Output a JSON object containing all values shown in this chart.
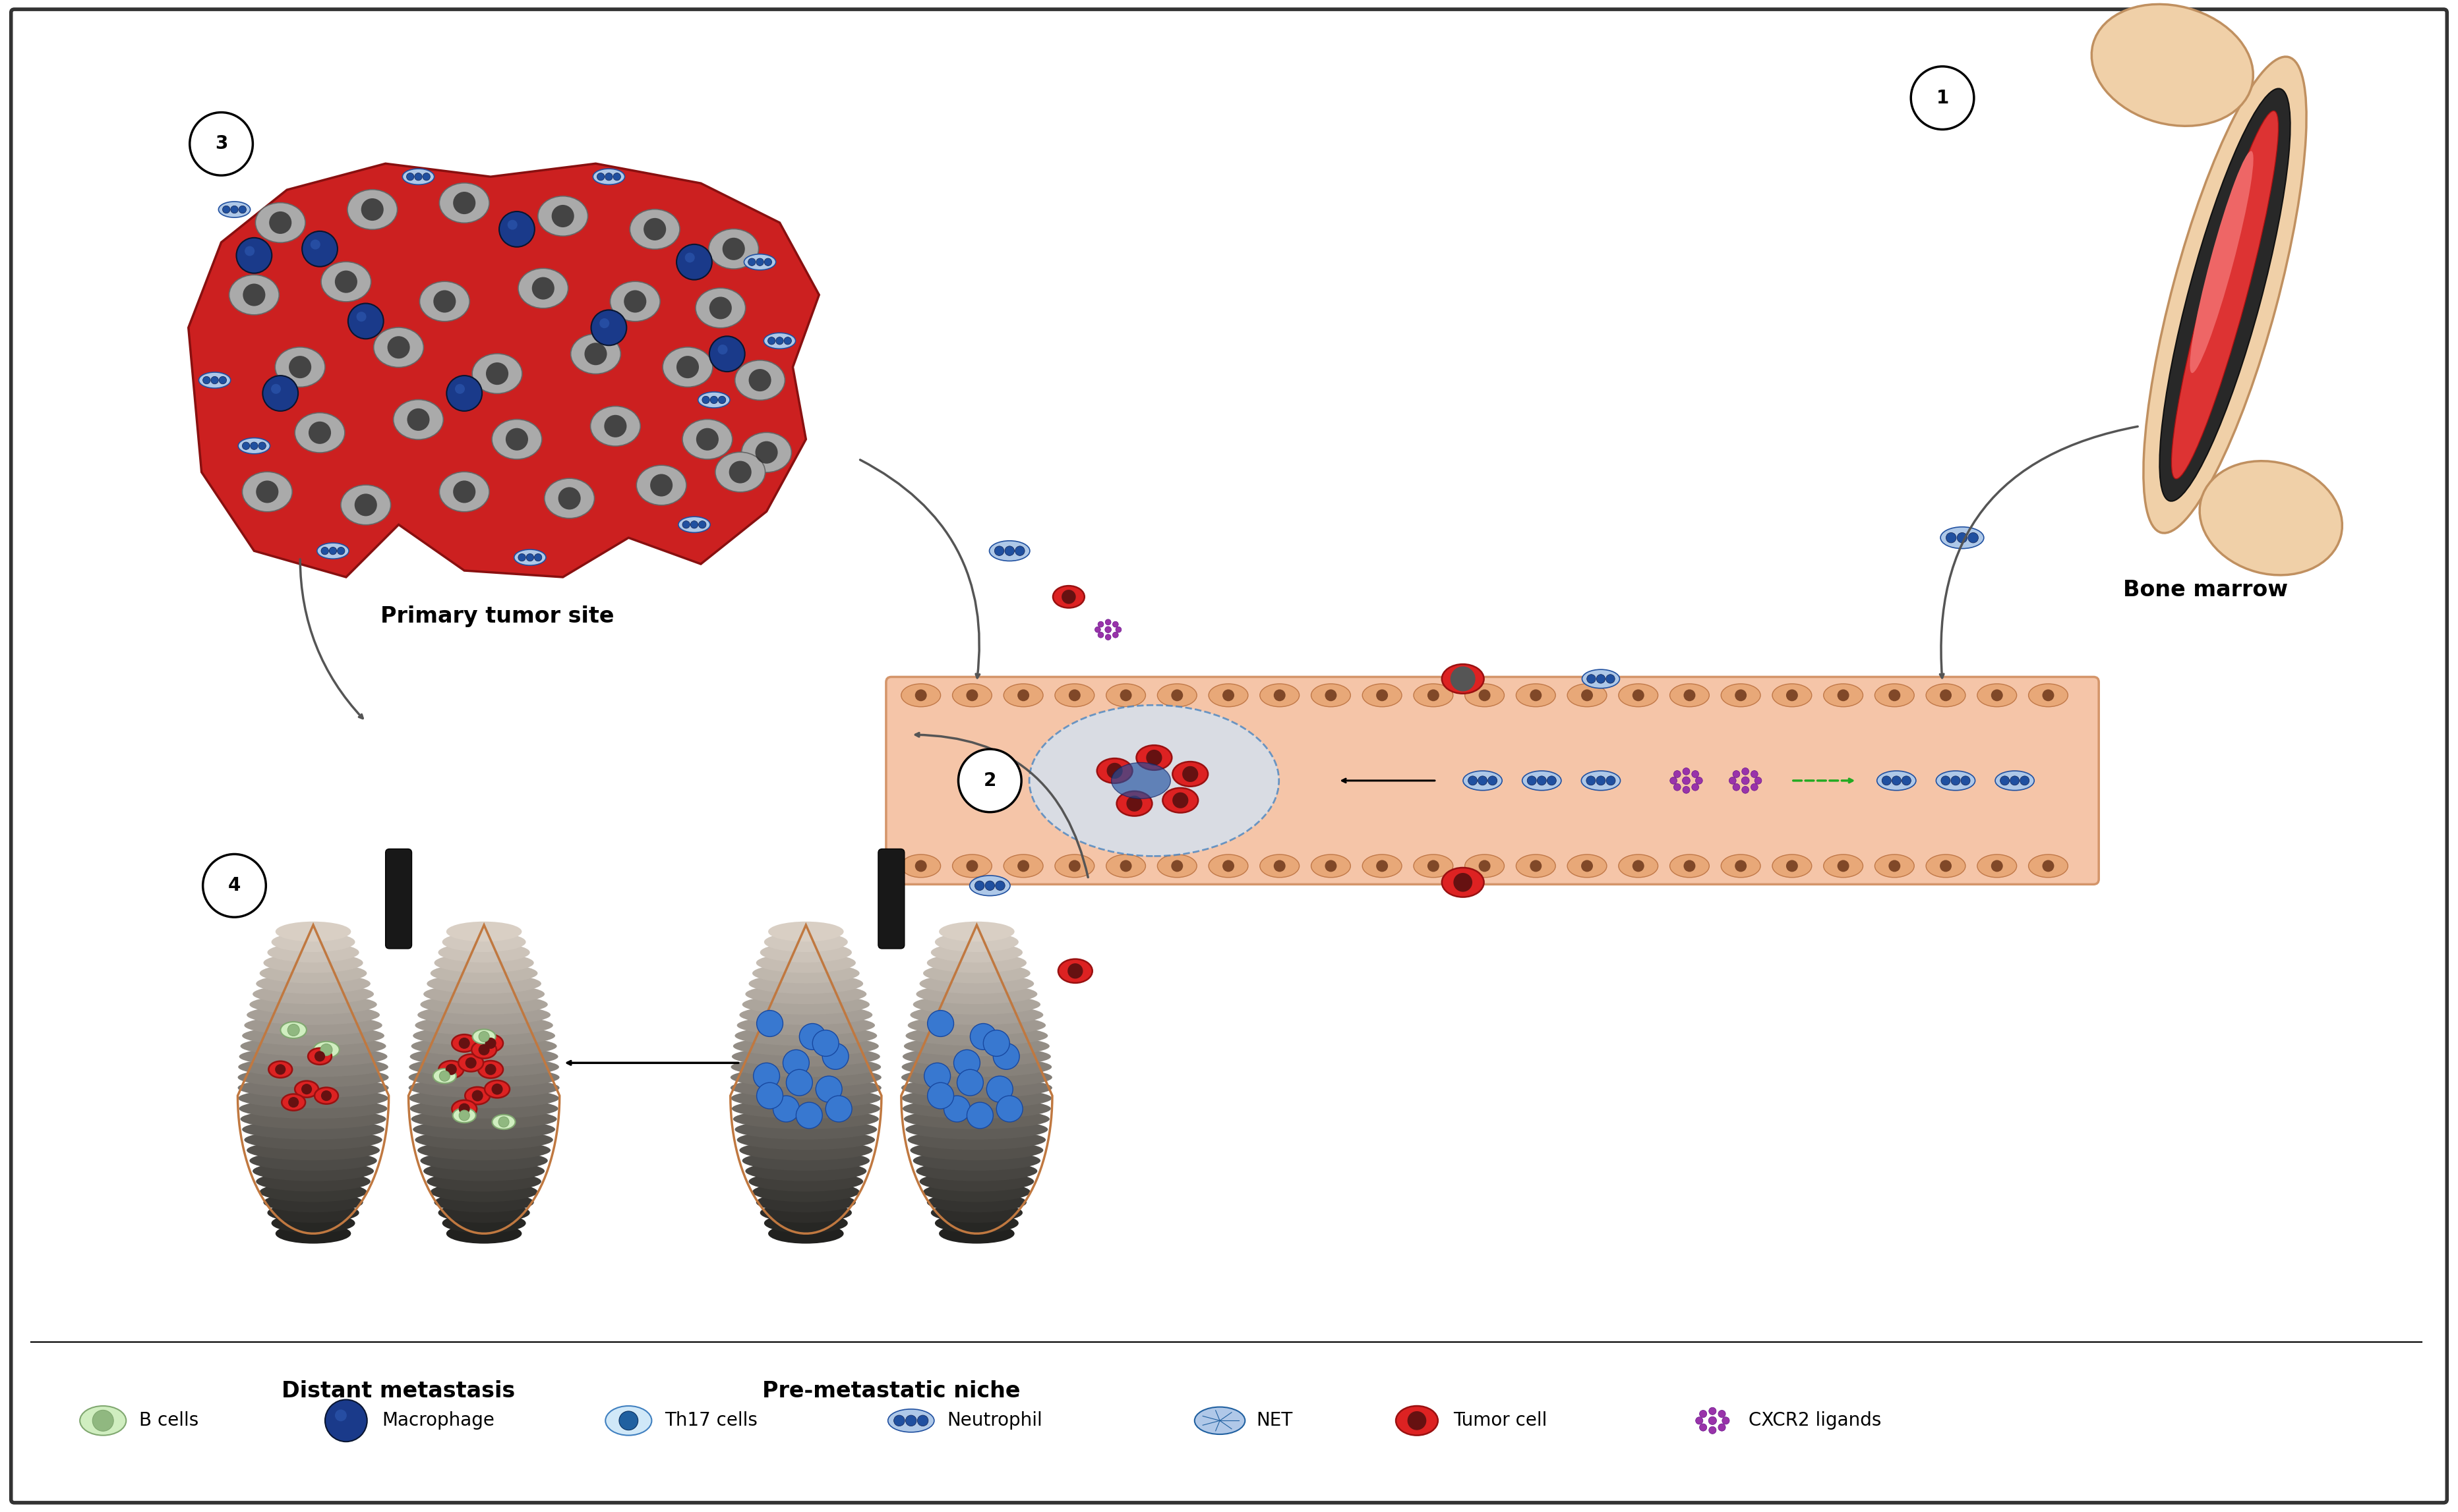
{
  "bg_color": "#ffffff",
  "border_color": "#333333",
  "labels": {
    "primary_tumor": "Primary tumor site",
    "bone_marrow": "Bone marrow",
    "distant_metastasis": "Distant metastasis",
    "pre_metastatic": "Pre-metastatic niche"
  },
  "vessel_fill": "#f5c5a8",
  "vessel_border": "#d4956a",
  "endo_cell_fill": "#e8a878",
  "endo_cell_border": "#c07848",
  "endo_dot": "#804828",
  "lung_border": "#c07840",
  "lung_dark": "#303030",
  "lung_light": "#e8e0d8",
  "trachea": "#181818",
  "bone_outer": "#f0d0a8",
  "bone_outer_border": "#c09060",
  "bone_cortex": "#282828",
  "bone_marrow_red": "#dd3333",
  "bone_marrow_pink": "#ee6666",
  "tumor_bg": "#cc2020",
  "tumor_bg_border": "#881010",
  "gray_cell_fill": "#aaaaaa",
  "gray_cell_border": "#666666",
  "gray_nucleus": "#222222",
  "red_cell_fill": "#dd2222",
  "red_cell_border": "#991111",
  "blue_mac": "#1a3a8a",
  "neutrophil_body": "#aec8e8",
  "neutrophil_nucleus": "#2050a0",
  "b_cell_fill": "#d0eec0",
  "b_cell_border": "#80a870",
  "b_cell_center": "#90b880",
  "th17_fill": "#d0e8f8",
  "th17_border": "#4080c0",
  "th17_center": "#2060a0",
  "net_fill": "#b0c8e8",
  "net_border": "#2060a0",
  "cxcr2_color": "#9933aa",
  "cxcr2_border": "#661188",
  "arrow_color": "#555555",
  "green_arrow": "#22aa22",
  "extr_fill": "#d0e4f8",
  "extr_border": "#4080c0"
}
